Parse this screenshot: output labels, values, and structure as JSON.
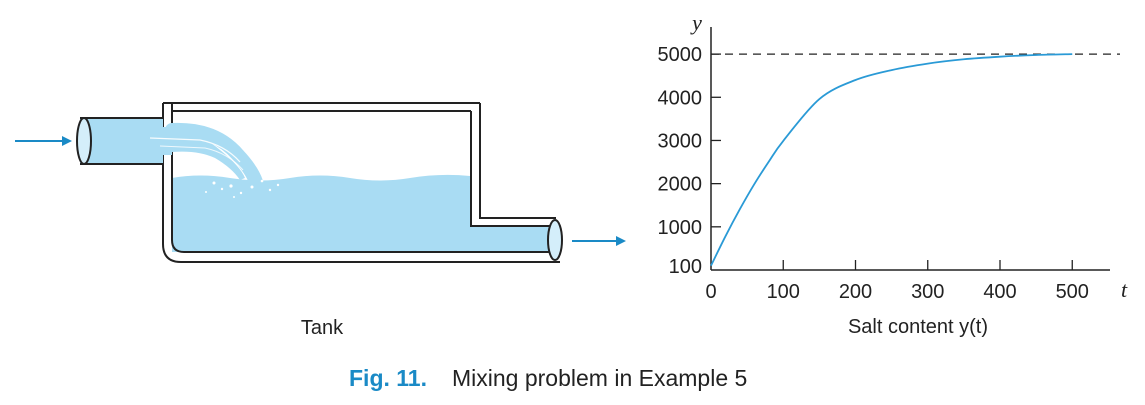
{
  "tank": {
    "label": "Tank"
  },
  "caption": {
    "number": "Fig. 11.",
    "text": "Mixing problem in Example 5"
  },
  "colors": {
    "arrow": "#1a8ac6",
    "water": "#a9dcf3",
    "water_light": "#d4eefa"
  },
  "chart_data": {
    "type": "line",
    "title": "",
    "ylabel": "y",
    "xlabel_axis": "t",
    "xlabel": "Salt content y(t)",
    "x_ticks": [
      0,
      100,
      200,
      300,
      400,
      500
    ],
    "x_tick_labels": [
      "0",
      "100",
      "200",
      "300",
      "400",
      "500"
    ],
    "y_ticks": [
      100,
      1000,
      2000,
      3000,
      4000,
      5000
    ],
    "y_tick_labels": [
      "100",
      "1000",
      "2000",
      "3000",
      "4000",
      "5000"
    ],
    "xlim": [
      0,
      560
    ],
    "ylim": [
      0,
      5300
    ],
    "asymptote": 5000,
    "series": [
      {
        "x": [
          0,
          20,
          40,
          60,
          80,
          100,
          150,
          200,
          250,
          300,
          350,
          400,
          450,
          500
        ],
        "values": [
          100,
          780,
          1410,
          1990,
          2510,
          2990,
          3960,
          4400,
          4630,
          4780,
          4880,
          4940,
          4980,
          5000
        ]
      }
    ]
  }
}
